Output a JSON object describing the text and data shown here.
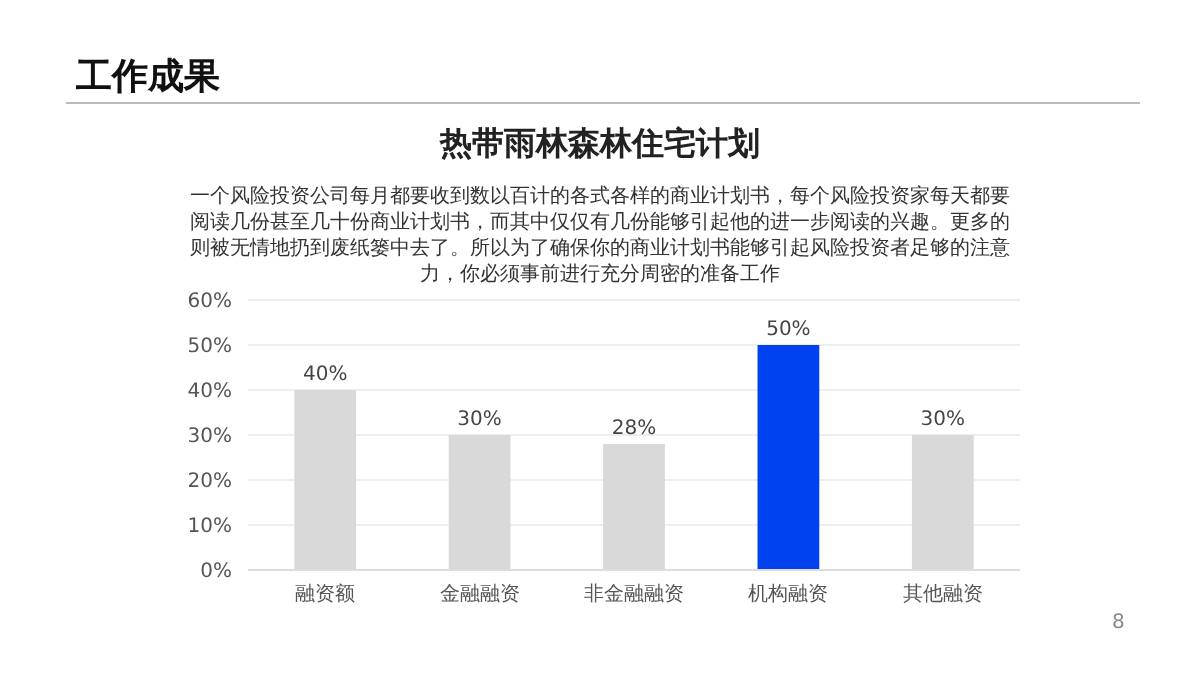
{
  "chart_data": {
    "type": "bar",
    "title": "热带雨林森林住宅计划",
    "subtitle": "一个风险投资公司每月都要收到数以百计的各式各样的商业计划书，每个风险投资家每天都要阅读几份甚至几十份商业计划书，而其中仅仅有几份能够引起他的进一步阅读的兴趣。更多的则被无情地扔到废纸篓中去了。所以为了确保你的商业计划书能够引起风险投资者足够的注意力，你必须事前进行充分周密的准备工作",
    "annotations": [
      "工作成果",
      "8"
    ],
    "categories": [
      "融资额",
      "金融融资",
      "非金融融资",
      "机构融资",
      "其他融资"
    ],
    "values": [
      40,
      30,
      28,
      50,
      30
    ],
    "colors": [
      "#d9d9d9",
      "#d9d9d9",
      "#d9d9d9",
      "#0041f0",
      "#d9d9d9"
    ],
    "value_labels": [
      "40%",
      "30%",
      "28%",
      "50%",
      "30%"
    ],
    "ylim": [
      0,
      60
    ],
    "yticks": [
      {
        "value": 0,
        "label": "0%"
      },
      {
        "value": 10,
        "label": "10%"
      },
      {
        "value": 20,
        "label": "20%"
      },
      {
        "value": 30,
        "label": "30%"
      },
      {
        "value": 40,
        "label": "40%"
      },
      {
        "value": 50,
        "label": "50%"
      },
      {
        "value": 60,
        "label": "60%"
      }
    ],
    "grid": "y",
    "legend": false
  }
}
